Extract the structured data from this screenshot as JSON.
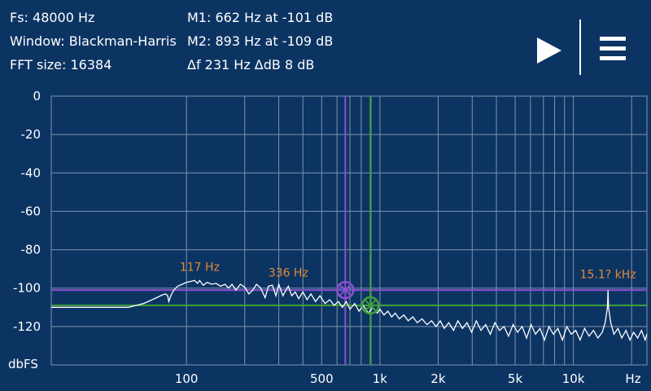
{
  "header": {
    "fs": "Fs: 48000 Hz",
    "window": "Window: Blackman-Harris",
    "fft_size": "FFT size: 16384",
    "marker1": "M1: 662 Hz at -101 dB",
    "marker2": "M2: 893 Hz at -109 dB",
    "delta": "Δf 231 Hz ΔdB 8 dB"
  },
  "controls": {
    "play_icon": "play-icon",
    "menu_icon": "hamburger-menu-icon"
  },
  "colors": {
    "background": "#0c3463",
    "marker1": "#8a4fd1",
    "marker2": "#3fa13a",
    "peak_label": "#e58a2e",
    "trace": "#ffffff"
  },
  "chart_data": {
    "type": "line",
    "xscale": "log",
    "xlim": [
      20,
      24000
    ],
    "ylim": [
      -140,
      0
    ],
    "ylabel": "dbFS",
    "xlabel": "Hz",
    "yticks": [
      0,
      -20,
      -40,
      -60,
      -80,
      -100,
      -120
    ],
    "xticks": [
      {
        "value": 100,
        "label": "100"
      },
      {
        "value": 500,
        "label": "500"
      },
      {
        "value": 1000,
        "label": "1k"
      },
      {
        "value": 2000,
        "label": "2k"
      },
      {
        "value": 5000,
        "label": "5k"
      },
      {
        "value": 10000,
        "label": "10k"
      }
    ],
    "grid_freqs": [
      100,
      200,
      300,
      400,
      500,
      600,
      700,
      800,
      900,
      1000,
      2000,
      3000,
      4000,
      5000,
      6000,
      7000,
      8000,
      9000,
      10000,
      20000
    ],
    "markers": [
      {
        "name": "M1",
        "freq": 662,
        "db": -101
      },
      {
        "name": "M2",
        "freq": 893,
        "db": -109
      }
    ],
    "peak_labels": [
      {
        "label": "117 Hz",
        "freq": 117,
        "db": -96
      },
      {
        "label": "336 Hz",
        "freq": 336,
        "db": -99
      },
      {
        "label": "15.1? kHz",
        "freq": 15100,
        "db": -100
      }
    ],
    "series": [
      {
        "points": [
          [
            20,
            -110
          ],
          [
            30,
            -110
          ],
          [
            40,
            -110
          ],
          [
            50,
            -110
          ],
          [
            55,
            -109
          ],
          [
            60,
            -108
          ],
          [
            65,
            -106.5
          ],
          [
            70,
            -105
          ],
          [
            75,
            -103.5
          ],
          [
            78,
            -103
          ],
          [
            80,
            -104
          ],
          [
            81,
            -107
          ],
          [
            83,
            -104
          ],
          [
            86,
            -101
          ],
          [
            90,
            -99
          ],
          [
            95,
            -98
          ],
          [
            100,
            -97
          ],
          [
            105,
            -96.5
          ],
          [
            110,
            -96
          ],
          [
            114,
            -97.5
          ],
          [
            117,
            -96
          ],
          [
            122,
            -98.5
          ],
          [
            128,
            -97
          ],
          [
            135,
            -98
          ],
          [
            142,
            -97.5
          ],
          [
            150,
            -99
          ],
          [
            158,
            -98
          ],
          [
            165,
            -100
          ],
          [
            172,
            -98
          ],
          [
            180,
            -101
          ],
          [
            190,
            -98
          ],
          [
            200,
            -99.5
          ],
          [
            210,
            -103
          ],
          [
            220,
            -101
          ],
          [
            230,
            -98
          ],
          [
            242,
            -100
          ],
          [
            255,
            -105
          ],
          [
            265,
            -99
          ],
          [
            278,
            -98.5
          ],
          [
            290,
            -104
          ],
          [
            300,
            -98
          ],
          [
            315,
            -104
          ],
          [
            327,
            -101
          ],
          [
            336,
            -99
          ],
          [
            350,
            -104
          ],
          [
            365,
            -102
          ],
          [
            380,
            -105.5
          ],
          [
            400,
            -102
          ],
          [
            420,
            -106
          ],
          [
            440,
            -103
          ],
          [
            465,
            -107
          ],
          [
            490,
            -104
          ],
          [
            520,
            -108
          ],
          [
            550,
            -106
          ],
          [
            580,
            -109
          ],
          [
            610,
            -107
          ],
          [
            640,
            -110
          ],
          [
            670,
            -107
          ],
          [
            700,
            -111
          ],
          [
            740,
            -108
          ],
          [
            780,
            -112
          ],
          [
            820,
            -109
          ],
          [
            870,
            -113
          ],
          [
            920,
            -110
          ],
          [
            970,
            -113
          ],
          [
            1000,
            -111
          ],
          [
            1050,
            -114
          ],
          [
            1100,
            -112
          ],
          [
            1150,
            -115
          ],
          [
            1200,
            -113
          ],
          [
            1260,
            -116
          ],
          [
            1330,
            -114
          ],
          [
            1400,
            -117
          ],
          [
            1480,
            -115
          ],
          [
            1560,
            -118
          ],
          [
            1650,
            -116
          ],
          [
            1750,
            -119
          ],
          [
            1850,
            -117
          ],
          [
            1950,
            -120
          ],
          [
            2050,
            -117
          ],
          [
            2150,
            -121
          ],
          [
            2270,
            -118
          ],
          [
            2400,
            -122
          ],
          [
            2530,
            -117
          ],
          [
            2670,
            -121
          ],
          [
            2820,
            -118
          ],
          [
            2980,
            -123
          ],
          [
            3150,
            -117
          ],
          [
            3330,
            -122
          ],
          [
            3520,
            -119
          ],
          [
            3720,
            -124
          ],
          [
            3930,
            -118
          ],
          [
            4150,
            -122
          ],
          [
            4380,
            -120
          ],
          [
            4620,
            -125
          ],
          [
            4880,
            -119
          ],
          [
            5150,
            -123
          ],
          [
            5430,
            -120
          ],
          [
            5730,
            -126
          ],
          [
            6040,
            -119
          ],
          [
            6370,
            -124
          ],
          [
            6720,
            -121
          ],
          [
            7090,
            -127
          ],
          [
            7480,
            -120
          ],
          [
            7890,
            -124
          ],
          [
            8320,
            -121
          ],
          [
            8770,
            -127
          ],
          [
            9250,
            -120
          ],
          [
            9750,
            -124
          ],
          [
            10280,
            -122
          ],
          [
            10840,
            -127
          ],
          [
            11430,
            -121
          ],
          [
            12050,
            -125
          ],
          [
            12700,
            -122
          ],
          [
            13380,
            -126
          ],
          [
            14100,
            -123
          ],
          [
            14600,
            -118
          ],
          [
            15000,
            -110
          ],
          [
            15100,
            -101
          ],
          [
            15200,
            -110
          ],
          [
            15600,
            -118
          ],
          [
            16200,
            -124
          ],
          [
            17000,
            -121
          ],
          [
            17800,
            -126
          ],
          [
            18700,
            -122
          ],
          [
            19600,
            -127
          ],
          [
            20500,
            -123
          ],
          [
            21500,
            -126
          ],
          [
            22500,
            -122
          ],
          [
            23500,
            -127
          ],
          [
            24000,
            -124
          ]
        ]
      }
    ]
  }
}
